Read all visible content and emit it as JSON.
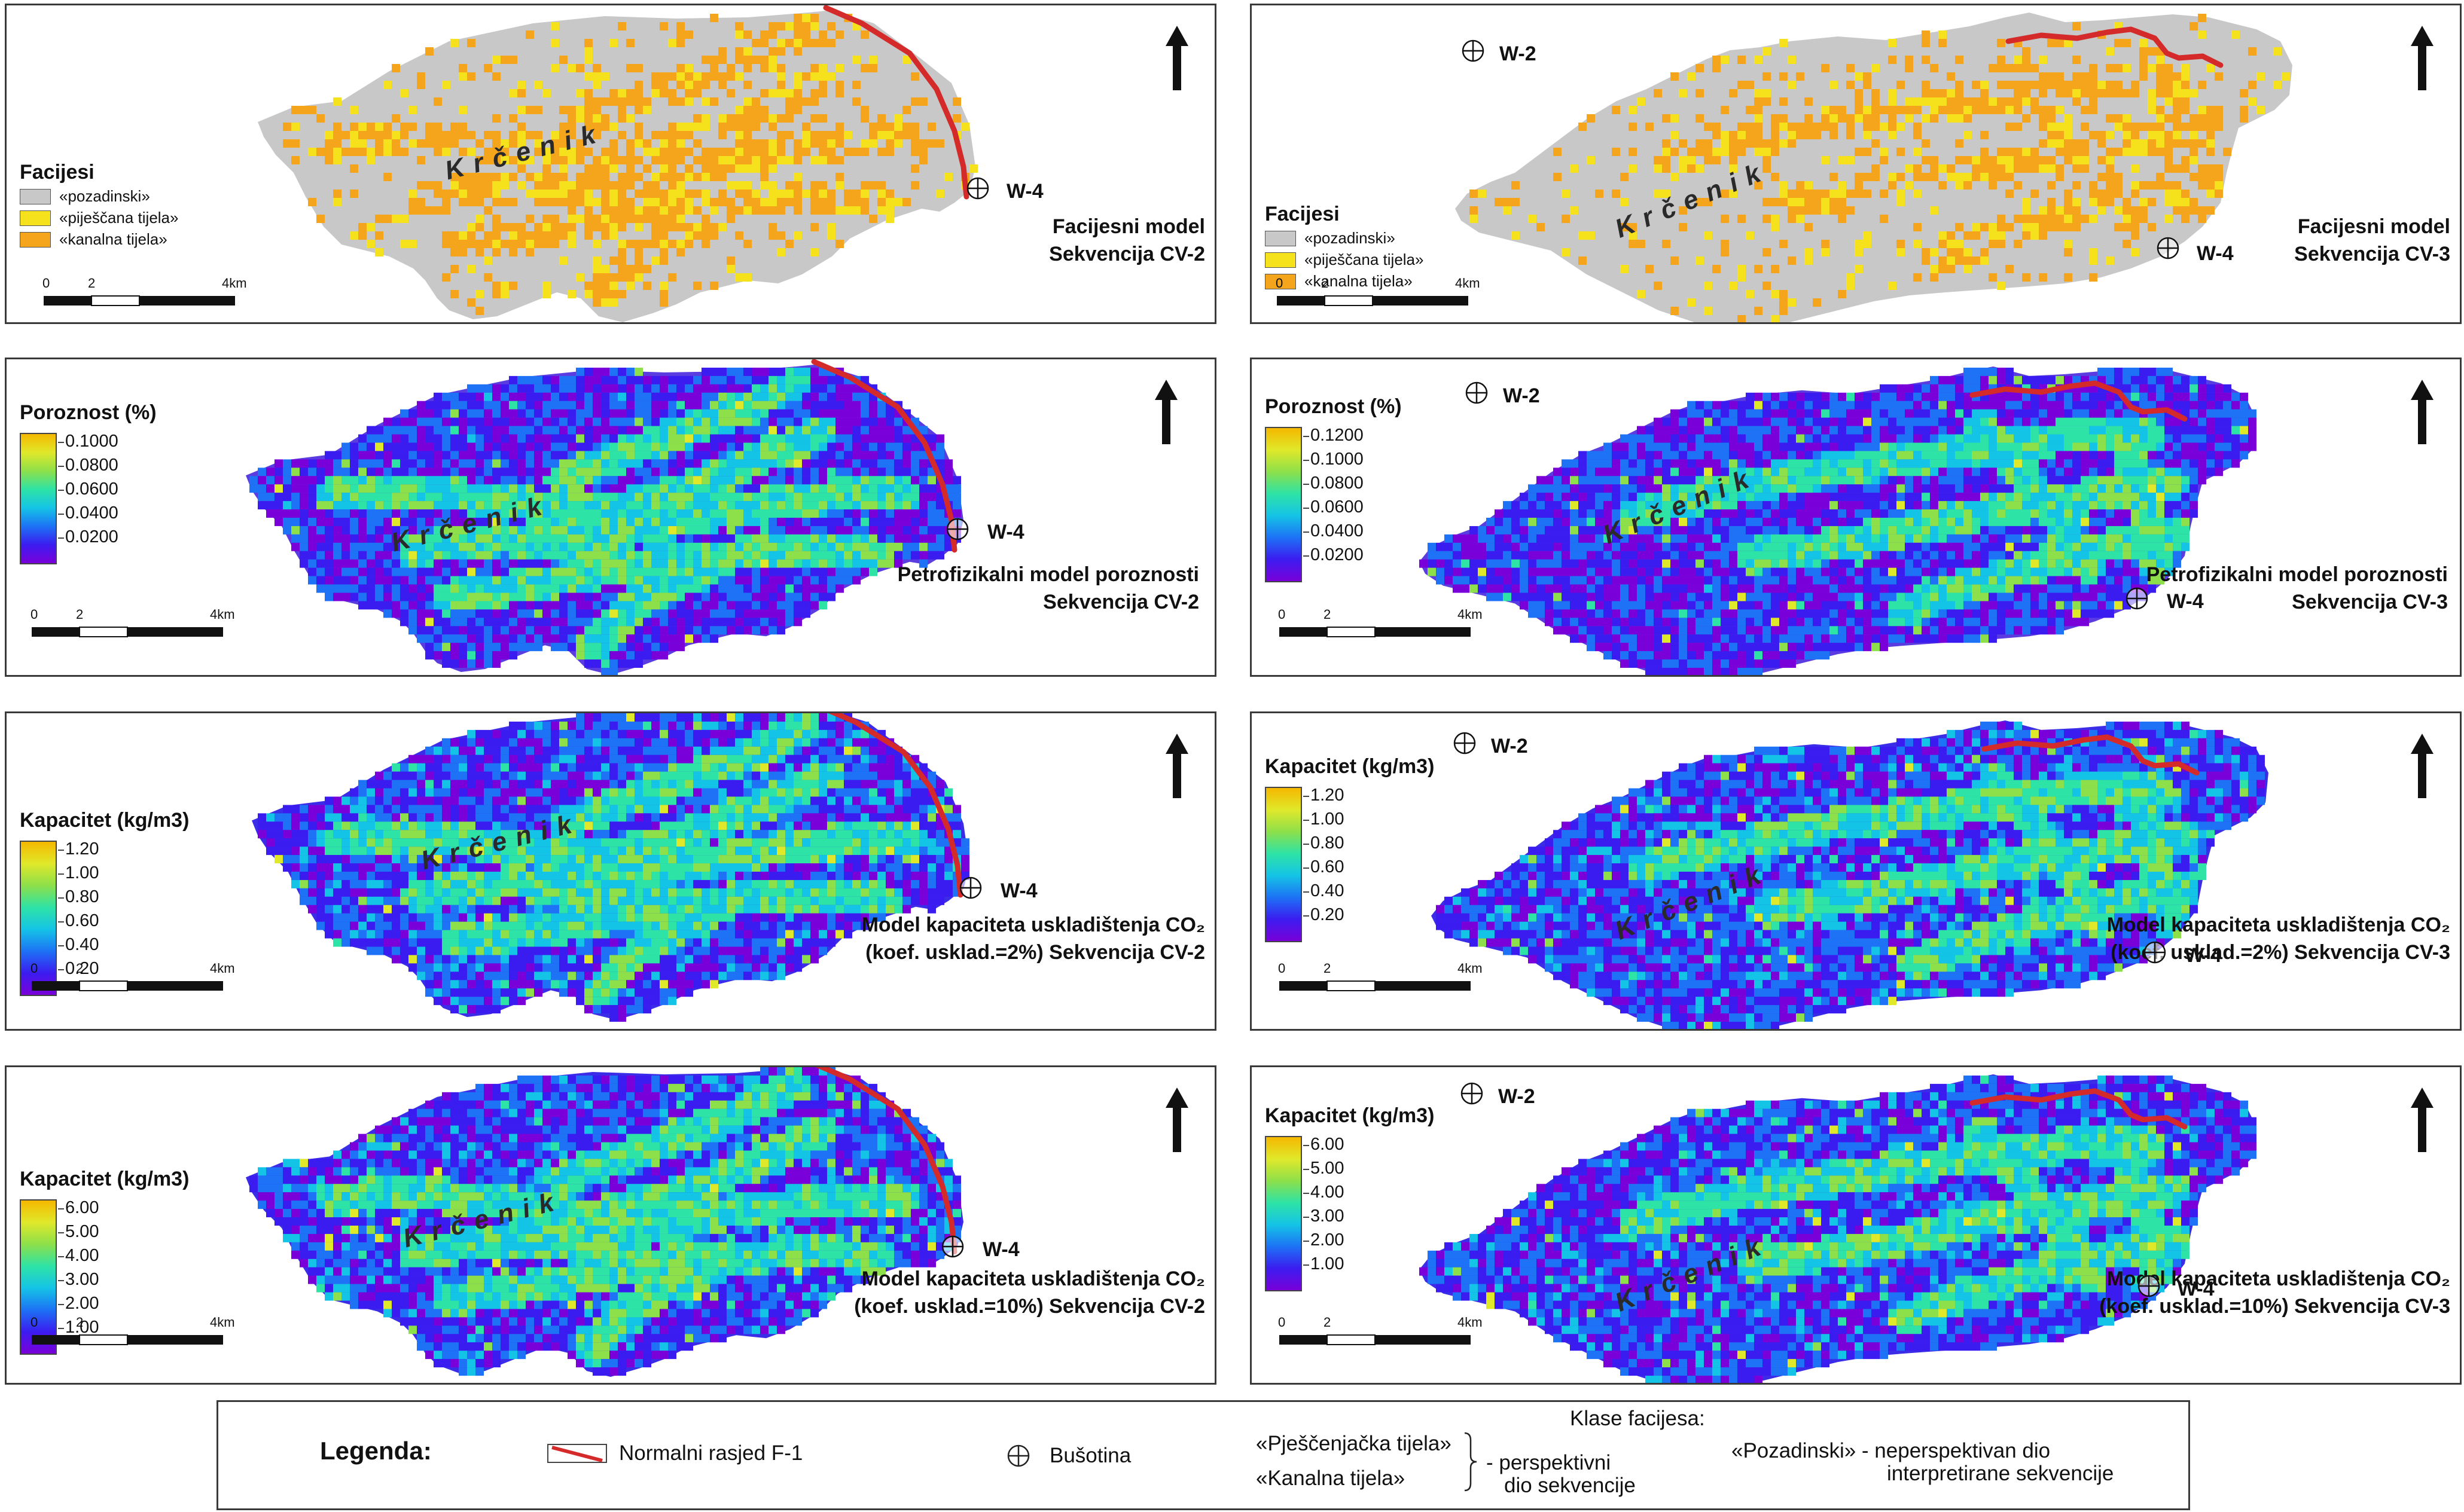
{
  "north_arrow_icon": "north-arrow-icon",
  "well_icon": "well-crosshair-icon",
  "colors": {
    "facies_background": "#c8c8c8",
    "facies_sand": "#f5e11c",
    "facies_channel": "#f5a51c",
    "fault": "#d42a2a",
    "ramp": [
      "#7a00d9",
      "#3b1cf0",
      "#1d72f5",
      "#14c4e6",
      "#2ee3a6",
      "#8de04a",
      "#e0e82a",
      "#f5b800"
    ]
  },
  "place_name": "Krčenik",
  "panels": [
    {
      "id": "a",
      "legend_type": "facies",
      "legend_title": "Facijesi",
      "facies": [
        "«pozadinski»",
        "«piješčana tijela»",
        "«kanalna tijela»"
      ],
      "scale": [
        "0",
        "2",
        "4km"
      ],
      "caption": [
        "Facijesni model",
        "Sekvencija CV-2"
      ],
      "wells": [
        {
          "label": "W-4"
        }
      ]
    },
    {
      "id": "b",
      "legend_type": "facies",
      "legend_title": "Facijesi",
      "facies": [
        "«pozadinski»",
        "«piješčana tijela»",
        "«kanalna tijela»"
      ],
      "scale": [
        "0",
        "2",
        "4km"
      ],
      "caption": [
        "Facijesni model",
        "Sekvencija CV-3"
      ],
      "wells": [
        {
          "label": "W-2"
        },
        {
          "label": "W-4"
        }
      ]
    },
    {
      "id": "c",
      "legend_type": "ramp",
      "legend_title": "Poroznost (%)",
      "ticks": [
        "0.1000",
        "0.0800",
        "0.0600",
        "0.0400",
        "0.0200"
      ],
      "scale": [
        "0",
        "2",
        "4km"
      ],
      "caption": [
        "Petrofizikalni model poroznosti",
        "Sekvencija CV-2"
      ],
      "wells": [
        {
          "label": "W-4"
        }
      ]
    },
    {
      "id": "d",
      "legend_type": "ramp",
      "legend_title": "Poroznost (%)",
      "ticks": [
        "0.1200",
        "0.1000",
        "0.0800",
        "0.0600",
        "0.0400",
        "0.0200"
      ],
      "scale": [
        "0",
        "2",
        "4km"
      ],
      "caption": [
        "Petrofizikalni model poroznosti",
        "Sekvencija CV-3"
      ],
      "wells": [
        {
          "label": "W-2"
        },
        {
          "label": "W-4"
        }
      ]
    },
    {
      "id": "e",
      "legend_type": "ramp",
      "legend_title": "Kapacitet (kg/m3)",
      "ticks": [
        "1.20",
        "1.00",
        "0.80",
        "0.60",
        "0.40",
        "0.20"
      ],
      "scale": [
        "0",
        "2",
        "4km"
      ],
      "caption": [
        "Model kapaciteta uskladištenja CO₂",
        "(koef. usklad.=2%) Sekvencija CV-2"
      ],
      "wells": [
        {
          "label": "W-4"
        }
      ]
    },
    {
      "id": "f",
      "legend_type": "ramp",
      "legend_title": "Kapacitet (kg/m3)",
      "ticks": [
        "1.20",
        "1.00",
        "0.80",
        "0.60",
        "0.40",
        "0.20"
      ],
      "scale": [
        "0",
        "2",
        "4km"
      ],
      "caption": [
        "Model kapaciteta uskladištenja CO₂",
        "(koef. usklad.=2%) Sekvencija CV-3"
      ],
      "wells": [
        {
          "label": "W-2"
        },
        {
          "label": "W-4"
        }
      ]
    },
    {
      "id": "g",
      "legend_type": "ramp",
      "legend_title": "Kapacitet (kg/m3)",
      "ticks": [
        "6.00",
        "5.00",
        "4.00",
        "3.00",
        "2.00",
        "1.00"
      ],
      "scale": [
        "0",
        "2",
        "4km"
      ],
      "caption": [
        "Model kapaciteta uskladištenja CO₂",
        "(koef. usklad.=10%) Sekvencija CV-2"
      ],
      "wells": [
        {
          "label": "W-4"
        }
      ]
    },
    {
      "id": "h",
      "legend_type": "ramp",
      "legend_title": "Kapacitet (kg/m3)",
      "ticks": [
        "6.00",
        "5.00",
        "4.00",
        "3.00",
        "2.00",
        "1.00"
      ],
      "scale": [
        "0",
        "2",
        "4km"
      ],
      "caption": [
        "Model kapaciteta uskladištenja CO₂",
        "(koef. usklad.=10%) Sekvencija CV-3"
      ],
      "wells": [
        {
          "label": "W-2"
        },
        {
          "label": "W-4"
        }
      ]
    }
  ],
  "legend": {
    "title": "Legenda:",
    "fault_label": "Normalni rasjed F-1",
    "well_label": "Bušotina",
    "classes_title": "Klase facijesa:",
    "sand_bodies": "«Pješčenjačka tijela»",
    "channel_bodies": "«Kanalna tijela»",
    "perspective_line1": "- perspektivni",
    "perspective_line2": "dio sekvencije",
    "background_line1": "«Pozadinski» - neperspektivan dio",
    "background_line2": "interpretirane sekvencije"
  }
}
